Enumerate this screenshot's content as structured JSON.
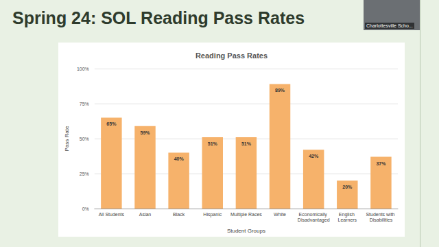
{
  "slide": {
    "title": "Spring 24: SOL Reading Pass Rates",
    "video_label": "Charlottesville Scho..."
  },
  "chart_data": {
    "type": "bar",
    "title": "Reading Pass Rates",
    "x_label": "Student Groups",
    "y_label": "Pass Rate",
    "categories": [
      "All Students",
      "Asian",
      "Black",
      "Hispanic",
      "Multiple Races",
      "White",
      "Economically Disadvantaged",
      "English Learners",
      "Students with Disabilities"
    ],
    "values": [
      65,
      59,
      40,
      51,
      51,
      89,
      42,
      20,
      37
    ],
    "value_labels": [
      "65%",
      "59%",
      "40%",
      "51%",
      "51%",
      "89%",
      "42%",
      "20%",
      "37%"
    ],
    "color": "#f6b26b",
    "ylim": [
      0,
      100
    ],
    "yticks": [
      {
        "value": 0,
        "label": "0%"
      },
      {
        "value": 25,
        "label": "25%"
      },
      {
        "value": 50,
        "label": "50%"
      },
      {
        "value": 75,
        "label": "75%"
      },
      {
        "value": 100,
        "label": "100%"
      }
    ],
    "grid": true,
    "data_labels": true
  }
}
